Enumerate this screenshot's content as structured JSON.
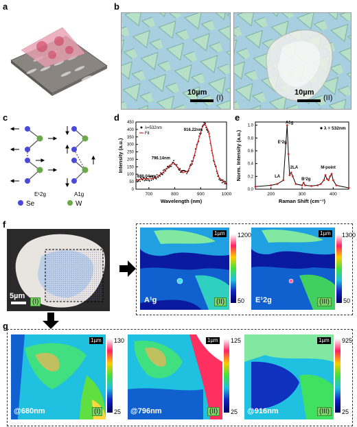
{
  "panels": {
    "a": "a",
    "b": "b",
    "c": "c",
    "d": "d",
    "e": "e",
    "f": "f",
    "g": "g"
  },
  "b_panel": {
    "left": {
      "scale": "10µm",
      "roman": "(I)"
    },
    "right": {
      "scale": "10µm",
      "roman": "(II)"
    }
  },
  "c_panel": {
    "mode1": "E¹2g",
    "mode2": "A1g",
    "legend": [
      {
        "label": "Se",
        "color": "#4a4ad8"
      },
      {
        "label": "W",
        "color": "#6aa84a"
      }
    ]
  },
  "chart_data": [
    {
      "type": "scatter",
      "xlabel": "Wavelength (nm)",
      "ylabel": "Intensity (a.u.)",
      "xlim": [
        650,
        1000
      ],
      "ylim": [
        0,
        450
      ],
      "x_ticks": [
        700,
        800,
        900,
        1000
      ],
      "y_ticks": [
        0,
        50,
        100,
        150,
        200,
        250,
        300,
        350,
        400,
        450
      ],
      "legend": [
        {
          "name": "λ=532nm"
        },
        {
          "name": "Fit"
        }
      ],
      "annotations": [
        "680.04nm",
        "796.14nm",
        "916.22nm"
      ],
      "fit": {
        "x": [
          650,
          680,
          700,
          730,
          760,
          780,
          796,
          810,
          830,
          850,
          870,
          890,
          905,
          916,
          930,
          950,
          970,
          1000
        ],
        "y": [
          60,
          70,
          68,
          80,
          120,
          160,
          178,
          150,
          110,
          120,
          190,
          320,
          410,
          440,
          390,
          200,
          80,
          30
        ]
      }
    },
    {
      "type": "line",
      "xlabel": "Raman Shift (cm⁻¹)",
      "ylabel": "Norm. Intensity (a.u.)",
      "xlim": [
        150,
        450
      ],
      "ylim": [
        0,
        1.05
      ],
      "x_ticks": [
        200,
        300,
        400
      ],
      "y_ticks": [
        0.0,
        0.2,
        0.4,
        0.6,
        0.8,
        1.0
      ],
      "legend": [
        {
          "name": "λ = 532nm"
        }
      ],
      "annotations": [
        "A1g",
        "E¹2g",
        "LA",
        "2LA",
        "B¹2g",
        "M-point"
      ],
      "x": [
        150,
        200,
        220,
        240,
        248,
        252,
        256,
        260,
        265,
        270,
        280,
        300,
        305,
        310,
        330,
        350,
        360,
        370,
        375,
        380,
        385,
        390,
        395,
        400,
        410,
        450
      ],
      "y": [
        0.04,
        0.06,
        0.08,
        0.14,
        0.72,
        1.0,
        0.55,
        0.22,
        0.26,
        0.2,
        0.08,
        0.06,
        0.1,
        0.06,
        0.05,
        0.06,
        0.08,
        0.14,
        0.22,
        0.16,
        0.14,
        0.2,
        0.24,
        0.14,
        0.06,
        0.02
      ]
    }
  ],
  "f_panel": {
    "optical": {
      "scale": "5µm",
      "roman": "(I)"
    },
    "a1g": {
      "label": "A¹g",
      "roman": "(II)",
      "scale": "1µm",
      "cmax": "1200",
      "cmin": "50"
    },
    "e12g": {
      "label": "E¹2g",
      "roman": "(III)",
      "scale": "1µm",
      "cmax": "1300",
      "cmin": "50"
    }
  },
  "g_panel": {
    "m680": {
      "label": "@680nm",
      "roman": "(I)",
      "scale": "1µm",
      "cmax": "130",
      "cmin": "25"
    },
    "m796": {
      "label": "@796nm",
      "roman": "(II)",
      "scale": "1µm",
      "cmax": "125",
      "cmin": "25"
    },
    "m916": {
      "label": "@916nm",
      "roman": "(III)",
      "scale": "1µm",
      "cmax": "925",
      "cmin": "25"
    }
  },
  "colors": {
    "accent_green": "#7dd46a",
    "fit_red": "#d42020",
    "data_black": "#000000"
  }
}
